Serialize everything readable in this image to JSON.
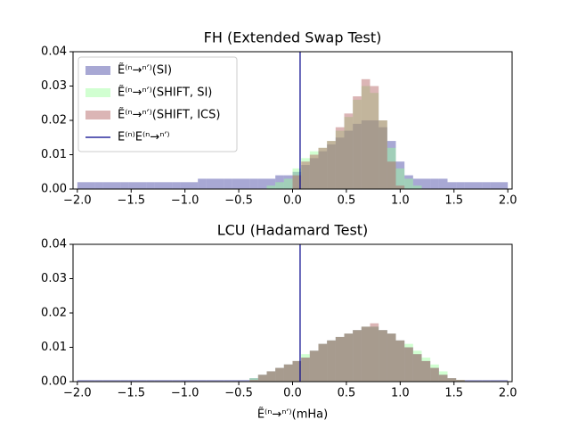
{
  "chart_data": [
    {
      "type": "histogram",
      "title": "FH (Extended Swap Test)",
      "legend": "upper left",
      "bins": [
        -2,
        -1.92,
        -1.84,
        -1.76,
        -1.68,
        -1.6,
        -1.52,
        -1.44,
        -1.36,
        -1.28,
        -1.2,
        -1.12,
        -1.04,
        -0.96,
        -0.88,
        -0.8,
        -0.72,
        -0.64,
        -0.56,
        -0.48,
        -0.4,
        -0.32,
        -0.24,
        -0.16,
        -0.08,
        0,
        0.08,
        0.16,
        0.24,
        0.32,
        0.4,
        0.48,
        0.56,
        0.64,
        0.72,
        0.8,
        0.88,
        0.96,
        1.04,
        1.12,
        1.2,
        1.28,
        1.36,
        1.44,
        1.52,
        1.6,
        1.68,
        1.76,
        1.84,
        1.92,
        2
      ],
      "series": [
        {
          "name": "Ẽ⁽ⁿ→ⁿ′⁾(SI)",
          "color": "#3f3fa0",
          "values": [
            0.002,
            0.002,
            0.002,
            0.002,
            0.002,
            0.002,
            0.002,
            0.002,
            0.002,
            0.002,
            0.002,
            0.002,
            0.002,
            0.002,
            0.003,
            0.003,
            0.003,
            0.003,
            0.003,
            0.003,
            0.003,
            0.003,
            0.003,
            0.004,
            0.004,
            0.005,
            0.007,
            0.009,
            0.011,
            0.013,
            0.015,
            0.017,
            0.019,
            0.02,
            0.02,
            0.018,
            0.014,
            0.008,
            0.004,
            0.003,
            0.003,
            0.003,
            0.003,
            0.002,
            0.002,
            0.002,
            0.002,
            0.002,
            0.002,
            0.002
          ]
        },
        {
          "name": "Ẽ⁽ⁿ→ⁿ′⁾(SHIFT, SI)",
          "color": "#99ff99",
          "values": [
            0,
            0,
            0,
            0,
            0,
            0,
            0,
            0,
            0,
            0,
            0,
            0,
            0,
            0,
            0,
            0,
            0,
            0,
            0,
            0,
            0,
            0,
            0.001,
            0.002,
            0.003,
            0.006,
            0.009,
            0.011,
            0.012,
            0.014,
            0.017,
            0.021,
            0.026,
            0.03,
            0.028,
            0.02,
            0.012,
            0.006,
            0.003,
            0.001,
            0,
            0,
            0,
            0,
            0,
            0,
            0,
            0,
            0,
            0
          ]
        },
        {
          "name": "Ẽ⁽ⁿ→ⁿ′⁾(SHIFT, ICS)",
          "color": "#b05a5a",
          "values": [
            0,
            0,
            0,
            0,
            0,
            0,
            0,
            0,
            0,
            0,
            0,
            0,
            0,
            0,
            0,
            0,
            0,
            0,
            0,
            0,
            0,
            0,
            0,
            0,
            0,
            0.004,
            0.008,
            0.01,
            0.012,
            0.014,
            0.018,
            0.022,
            0.027,
            0.032,
            0.03,
            0.02,
            0.008,
            0.001,
            0,
            0,
            0,
            0,
            0,
            0,
            0,
            0,
            0,
            0,
            0,
            0
          ]
        }
      ],
      "vline": {
        "x": 0.07,
        "color": "#00008b",
        "name": "E⁽ⁿ⁾E⁽ⁿ→ⁿ′⁾"
      },
      "xlim": [
        -2.04,
        2.04
      ],
      "ylim": [
        0,
        0.04
      ],
      "xticks": [
        {
          "value": -2,
          "label": "−2.0"
        },
        {
          "value": -1.5,
          "label": "−1.5"
        },
        {
          "value": -1,
          "label": "−1.0"
        },
        {
          "value": -0.5,
          "label": "−0.5"
        },
        {
          "value": 0,
          "label": "0.0"
        },
        {
          "value": 0.5,
          "label": "0.5"
        },
        {
          "value": 1,
          "label": "1.0"
        },
        {
          "value": 1.5,
          "label": "1.5"
        },
        {
          "value": 2,
          "label": "2.0"
        }
      ],
      "yticks": [
        {
          "value": 0,
          "label": "0.00"
        },
        0.01,
        0.02,
        0.03,
        0.04
      ]
    },
    {
      "type": "histogram",
      "title": "LCU (Hadamard Test)",
      "xlabel": "Ẽ⁽ⁿ→ⁿ′⁾(mHa)",
      "bins": [
        -2,
        -1.92,
        -1.84,
        -1.76,
        -1.68,
        -1.6,
        -1.52,
        -1.44,
        -1.36,
        -1.28,
        -1.2,
        -1.12,
        -1.04,
        -0.96,
        -0.88,
        -0.8,
        -0.72,
        -0.64,
        -0.56,
        -0.48,
        -0.4,
        -0.32,
        -0.24,
        -0.16,
        -0.08,
        0,
        0.08,
        0.16,
        0.24,
        0.32,
        0.4,
        0.48,
        0.56,
        0.64,
        0.72,
        0.8,
        0.88,
        0.96,
        1.04,
        1.12,
        1.2,
        1.28,
        1.36,
        1.44,
        1.52,
        1.6,
        1.68,
        1.76,
        1.84,
        1.92,
        2
      ],
      "series": [
        {
          "color": "#3f3fa0",
          "values": [
            0.0005,
            0.0005,
            0.0005,
            0.0005,
            0.0005,
            0.0005,
            0.0005,
            0.0005,
            0.0005,
            0.0005,
            0.0005,
            0.0005,
            0.0005,
            0.0005,
            0.0005,
            0.0005,
            0.0005,
            0.0005,
            0.0005,
            0.0005,
            0.001,
            0.002,
            0.003,
            0.004,
            0.005,
            0.006,
            0.007,
            0.009,
            0.011,
            0.012,
            0.013,
            0.014,
            0.015,
            0.016,
            0.016,
            0.015,
            0.014,
            0.012,
            0.01,
            0.008,
            0.006,
            0.004,
            0.002,
            0.001,
            0.0005,
            0.0005,
            0.0005,
            0.0005,
            0.0005,
            0.0005
          ]
        },
        {
          "color": "#99ff99",
          "values": [
            0,
            0,
            0,
            0,
            0,
            0,
            0,
            0,
            0,
            0,
            0,
            0,
            0,
            0,
            0,
            0,
            0,
            0,
            0,
            0,
            0.001,
            0.002,
            0.003,
            0.004,
            0.005,
            0.006,
            0.008,
            0.009,
            0.011,
            0.012,
            0.013,
            0.014,
            0.015,
            0.016,
            0.016,
            0.015,
            0.014,
            0.012,
            0.011,
            0.009,
            0.007,
            0.005,
            0.003,
            0.001,
            0.0005,
            0,
            0,
            0,
            0,
            0
          ]
        },
        {
          "color": "#b05a5a",
          "values": [
            0,
            0,
            0,
            0,
            0,
            0,
            0,
            0,
            0,
            0,
            0,
            0,
            0,
            0,
            0,
            0,
            0,
            0,
            0,
            0,
            0.0005,
            0.002,
            0.003,
            0.004,
            0.005,
            0.006,
            0.007,
            0.009,
            0.011,
            0.012,
            0.013,
            0.014,
            0.015,
            0.016,
            0.017,
            0.015,
            0.014,
            0.012,
            0.01,
            0.008,
            0.006,
            0.004,
            0.002,
            0.001,
            0.0005,
            0,
            0,
            0,
            0,
            0
          ]
        }
      ],
      "vline": {
        "x": 0.07,
        "color": "#00008b"
      },
      "xlim": [
        -2.04,
        2.04
      ],
      "ylim": [
        0,
        0.04
      ],
      "xticks": [
        {
          "value": -2,
          "label": "−2.0"
        },
        {
          "value": -1.5,
          "label": "−1.5"
        },
        {
          "value": -1,
          "label": "−1.0"
        },
        {
          "value": -0.5,
          "label": "−0.5"
        },
        {
          "value": 0,
          "label": "0.0"
        },
        {
          "value": 0.5,
          "label": "0.5"
        },
        {
          "value": 1,
          "label": "1.0"
        },
        {
          "value": 1.5,
          "label": "1.5"
        },
        {
          "value": 2,
          "label": "2.0"
        }
      ],
      "yticks": [
        {
          "value": 0,
          "label": "0.00"
        },
        0.01,
        0.02,
        0.03,
        0.04
      ]
    }
  ]
}
